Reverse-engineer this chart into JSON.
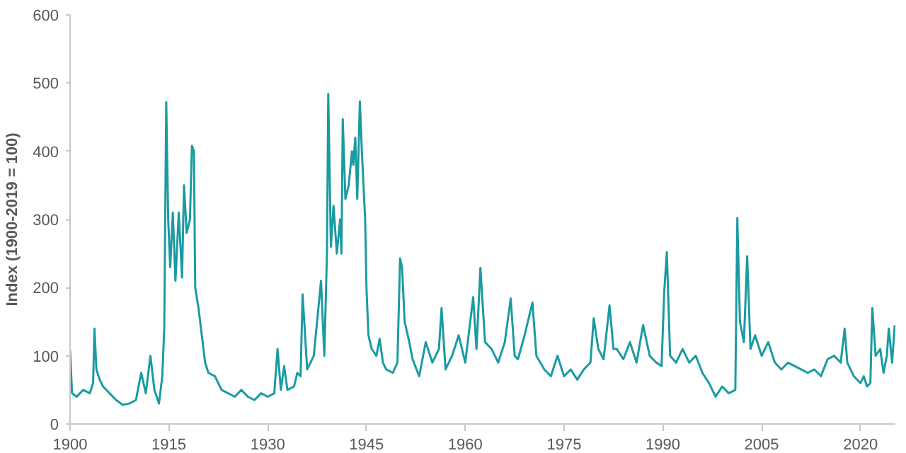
{
  "chart_data": {
    "type": "line",
    "ylabel": "Index (1900-2019 = 100)",
    "xlim": [
      1900,
      2025.3
    ],
    "xticks": [
      1900,
      1915,
      1930,
      1945,
      1960,
      1975,
      1990,
      2005,
      2020
    ],
    "ylim": [
      0,
      600
    ],
    "yticks": [
      0,
      100,
      200,
      300,
      400,
      500,
      600
    ],
    "grid": false,
    "marker": "none",
    "line_style": "solid",
    "series": [
      {
        "color": "#1a9ba1",
        "x": [
          1900.0,
          1900.3,
          1901,
          1902,
          1903,
          1903.5,
          1903.7,
          1904,
          1904.5,
          1905,
          1906,
          1907,
          1908,
          1909,
          1910,
          1910.8,
          1911.5,
          1912.2,
          1912.8,
          1913.5,
          1914.0,
          1914.3,
          1914.6,
          1914.9,
          1915.2,
          1915.6,
          1916,
          1916.5,
          1917,
          1917.3,
          1917.7,
          1918.2,
          1918.5,
          1918.8,
          1919.0,
          1919.5,
          1920,
          1920.5,
          1921,
          1922,
          1923,
          1924,
          1925,
          1926,
          1927,
          1928,
          1929,
          1930,
          1931,
          1931.5,
          1932,
          1932.5,
          1933,
          1934,
          1934.5,
          1935,
          1935.3,
          1936,
          1937,
          1938.1,
          1938.6,
          1939.0,
          1939.2,
          1939.6,
          1940,
          1940.5,
          1941,
          1941.2,
          1941.4,
          1941.8,
          1942.3,
          1942.8,
          1943,
          1943.3,
          1943.6,
          1944.0,
          1944.3,
          1944.8,
          1945.0,
          1945.3,
          1945.8,
          1946.5,
          1947,
          1947.5,
          1948,
          1949,
          1949.7,
          1950.1,
          1950.4,
          1950.8,
          1951.5,
          1952,
          1953,
          1954,
          1955,
          1956,
          1956.4,
          1957,
          1958,
          1959,
          1960,
          1961.2,
          1961.7,
          1962.3,
          1963,
          1964,
          1965,
          1966,
          1966.9,
          1967.5,
          1968,
          1969,
          1970.2,
          1970.8,
          1972,
          1973,
          1974,
          1975,
          1976,
          1977,
          1978,
          1979,
          1979.5,
          1980.2,
          1981,
          1981.9,
          1982.5,
          1983,
          1984,
          1985,
          1986,
          1987,
          1988,
          1989,
          1989.8,
          1990.2,
          1990.6,
          1991.1,
          1992,
          1993,
          1994,
          1995,
          1996,
          1997,
          1998,
          1999,
          2000,
          2001,
          2001.3,
          2001.7,
          2002.3,
          2002.8,
          2003.3,
          2004,
          2005,
          2006,
          2007,
          2008,
          2009,
          2010,
          2011,
          2012,
          2013,
          2014,
          2015,
          2016,
          2017,
          2017.6,
          2018,
          2019,
          2020,
          2020.5,
          2021,
          2021.5,
          2021.8,
          2022.3,
          2023,
          2023.5,
          2024,
          2024.3,
          2024.8,
          2025.2
        ],
        "values": [
          108,
          45,
          40,
          50,
          45,
          60,
          140,
          80,
          65,
          55,
          45,
          35,
          28,
          30,
          35,
          75,
          45,
          100,
          50,
          30,
          70,
          140,
          472,
          300,
          230,
          310,
          210,
          310,
          215,
          350,
          280,
          300,
          408,
          400,
          200,
          170,
          130,
          90,
          75,
          70,
          50,
          45,
          40,
          50,
          40,
          35,
          45,
          40,
          45,
          110,
          50,
          85,
          50,
          55,
          75,
          70,
          190,
          80,
          100,
          210,
          100,
          250,
          484,
          260,
          320,
          250,
          300,
          250,
          447,
          330,
          350,
          400,
          380,
          420,
          330,
          473,
          400,
          300,
          200,
          130,
          110,
          100,
          125,
          90,
          80,
          75,
          90,
          243,
          230,
          150,
          120,
          95,
          70,
          120,
          90,
          110,
          170,
          80,
          100,
          130,
          90,
          186,
          110,
          229,
          120,
          110,
          90,
          120,
          184,
          100,
          95,
          130,
          178,
          100,
          80,
          70,
          100,
          70,
          80,
          65,
          80,
          90,
          155,
          110,
          95,
          174,
          110,
          110,
          95,
          120,
          90,
          145,
          100,
          90,
          85,
          193,
          252,
          100,
          90,
          110,
          90,
          100,
          75,
          60,
          40,
          55,
          45,
          50,
          302,
          150,
          120,
          246,
          110,
          130,
          100,
          120,
          90,
          80,
          90,
          85,
          80,
          75,
          80,
          70,
          95,
          100,
          90,
          140,
          90,
          70,
          60,
          70,
          55,
          60,
          170,
          100,
          110,
          75,
          100,
          140,
          90,
          145
        ]
      }
    ]
  }
}
